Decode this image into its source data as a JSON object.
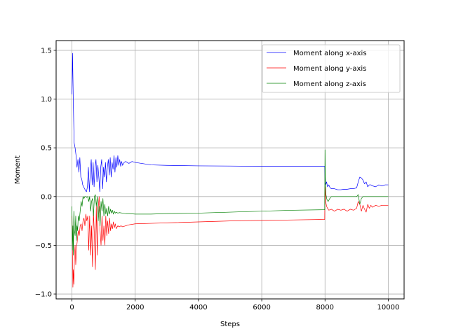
{
  "chart_data": {
    "type": "line",
    "title": "",
    "xlabel": "Steps",
    "ylabel": "Moment",
    "xlim": [
      -500,
      10500
    ],
    "ylim": [
      -1.05,
      1.6
    ],
    "xticks": [
      0,
      2000,
      4000,
      6000,
      8000,
      10000
    ],
    "xtick_labels": [
      "0",
      "2000",
      "4000",
      "6000",
      "8000",
      "10000"
    ],
    "yticks": [
      -1.0,
      -0.5,
      0.0,
      0.5,
      1.0,
      1.5
    ],
    "ytick_labels": [
      "−1.0",
      "−0.5",
      "0.0",
      "0.5",
      "1.0",
      "1.5"
    ],
    "grid": true,
    "legend_position": "top-right",
    "series": [
      {
        "name": "Moment along x-axis",
        "color": "#0000ff",
        "points": [
          [
            0,
            1.05
          ],
          [
            20,
            1.47
          ],
          [
            40,
            1.02
          ],
          [
            70,
            0.55
          ],
          [
            100,
            0.5
          ],
          [
            130,
            0.42
          ],
          [
            160,
            0.3
          ],
          [
            190,
            0.38
          ],
          [
            220,
            0.25
          ],
          [
            250,
            0.4
          ],
          [
            280,
            0.2
          ],
          [
            310,
            0.18
          ],
          [
            340,
            0.12
          ],
          [
            370,
            0.1
          ],
          [
            400,
            0.08
          ],
          [
            430,
            0.06
          ],
          [
            460,
            0.05
          ],
          [
            490,
            0.1
          ],
          [
            520,
            0.3
          ],
          [
            550,
            0.05
          ],
          [
            580,
            0.25
          ],
          [
            610,
            0.38
          ],
          [
            640,
            0.12
          ],
          [
            670,
            0.35
          ],
          [
            700,
            0.1
          ],
          [
            730,
            0.3
          ],
          [
            760,
            0.38
          ],
          [
            790,
            0.15
          ],
          [
            820,
            0.32
          ],
          [
            850,
            0.2
          ],
          [
            880,
            0.05
          ],
          [
            910,
            0.3
          ],
          [
            940,
            0.38
          ],
          [
            970,
            0.08
          ],
          [
            1000,
            0.3
          ],
          [
            1030,
            0.2
          ],
          [
            1060,
            0.35
          ],
          [
            1090,
            0.15
          ],
          [
            1120,
            0.3
          ],
          [
            1150,
            0.38
          ],
          [
            1180,
            0.22
          ],
          [
            1210,
            0.4
          ],
          [
            1240,
            0.2
          ],
          [
            1270,
            0.35
          ],
          [
            1300,
            0.28
          ],
          [
            1330,
            0.42
          ],
          [
            1360,
            0.25
          ],
          [
            1390,
            0.4
          ],
          [
            1420,
            0.3
          ],
          [
            1450,
            0.42
          ],
          [
            1480,
            0.32
          ],
          [
            1510,
            0.38
          ],
          [
            1540,
            0.31
          ],
          [
            1570,
            0.36
          ],
          [
            1600,
            0.32
          ],
          [
            1650,
            0.35
          ],
          [
            1700,
            0.36
          ],
          [
            1750,
            0.35
          ],
          [
            1800,
            0.34
          ],
          [
            1900,
            0.36
          ],
          [
            2000,
            0.35
          ],
          [
            2200,
            0.34
          ],
          [
            2500,
            0.325
          ],
          [
            3000,
            0.32
          ],
          [
            4000,
            0.315
          ],
          [
            5000,
            0.313
          ],
          [
            6000,
            0.31
          ],
          [
            7000,
            0.31
          ],
          [
            7990,
            0.31
          ],
          [
            8000,
            0.16
          ],
          [
            8020,
            0.12
          ],
          [
            8050,
            0.15
          ],
          [
            8080,
            0.1
          ],
          [
            8120,
            0.12
          ],
          [
            8160,
            0.09
          ],
          [
            8200,
            0.08
          ],
          [
            8300,
            0.08
          ],
          [
            8400,
            0.07
          ],
          [
            8500,
            0.07
          ],
          [
            8600,
            0.075
          ],
          [
            8700,
            0.075
          ],
          [
            8800,
            0.08
          ],
          [
            8900,
            0.08
          ],
          [
            9000,
            0.09
          ],
          [
            9050,
            0.15
          ],
          [
            9100,
            0.2
          ],
          [
            9150,
            0.19
          ],
          [
            9200,
            0.17
          ],
          [
            9250,
            0.13
          ],
          [
            9300,
            0.15
          ],
          [
            9350,
            0.1
          ],
          [
            9400,
            0.12
          ],
          [
            9450,
            0.12
          ],
          [
            9500,
            0.11
          ],
          [
            9600,
            0.1
          ],
          [
            9700,
            0.12
          ],
          [
            9800,
            0.11
          ],
          [
            9900,
            0.12
          ],
          [
            10000,
            0.12
          ]
        ]
      },
      {
        "name": "Moment along y-axis",
        "color": "#ff0000",
        "points": [
          [
            0,
            -0.2
          ],
          [
            15,
            -0.5
          ],
          [
            30,
            -0.93
          ],
          [
            45,
            -0.75
          ],
          [
            60,
            -0.9
          ],
          [
            80,
            -0.6
          ],
          [
            100,
            -0.5
          ],
          [
            120,
            -0.7
          ],
          [
            140,
            -0.55
          ],
          [
            170,
            -0.45
          ],
          [
            200,
            -0.35
          ],
          [
            230,
            -0.4
          ],
          [
            260,
            -0.3
          ],
          [
            290,
            -0.28
          ],
          [
            320,
            -0.35
          ],
          [
            350,
            -0.25
          ],
          [
            380,
            -0.22
          ],
          [
            410,
            -0.3
          ],
          [
            440,
            -0.18
          ],
          [
            470,
            -0.25
          ],
          [
            500,
            -0.2
          ],
          [
            530,
            -0.55
          ],
          [
            560,
            -0.2
          ],
          [
            590,
            -0.6
          ],
          [
            620,
            -0.3
          ],
          [
            650,
            -0.72
          ],
          [
            680,
            -0.15
          ],
          [
            710,
            -0.4
          ],
          [
            740,
            -0.75
          ],
          [
            770,
            -0.1
          ],
          [
            800,
            -0.6
          ],
          [
            830,
            -0.12
          ],
          [
            860,
            0.0
          ],
          [
            890,
            -0.35
          ],
          [
            920,
            -0.5
          ],
          [
            950,
            -0.2
          ],
          [
            980,
            -0.45
          ],
          [
            1010,
            -0.3
          ],
          [
            1040,
            -0.5
          ],
          [
            1070,
            -0.2
          ],
          [
            1100,
            -0.4
          ],
          [
            1130,
            -0.25
          ],
          [
            1160,
            -0.38
          ],
          [
            1190,
            -0.22
          ],
          [
            1220,
            -0.35
          ],
          [
            1250,
            -0.28
          ],
          [
            1280,
            -0.33
          ],
          [
            1310,
            -0.26
          ],
          [
            1340,
            -0.32
          ],
          [
            1370,
            -0.28
          ],
          [
            1400,
            -0.33
          ],
          [
            1450,
            -0.3
          ],
          [
            1500,
            -0.31
          ],
          [
            1550,
            -0.3
          ],
          [
            1600,
            -0.31
          ],
          [
            1700,
            -0.3
          ],
          [
            1800,
            -0.29
          ],
          [
            2000,
            -0.28
          ],
          [
            2500,
            -0.275
          ],
          [
            3000,
            -0.27
          ],
          [
            4000,
            -0.26
          ],
          [
            5000,
            -0.25
          ],
          [
            6000,
            -0.245
          ],
          [
            7000,
            -0.24
          ],
          [
            7990,
            -0.235
          ],
          [
            8000,
            0.1
          ],
          [
            8020,
            -0.05
          ],
          [
            8050,
            -0.1
          ],
          [
            8080,
            -0.12
          ],
          [
            8120,
            -0.14
          ],
          [
            8200,
            -0.13
          ],
          [
            8300,
            -0.15
          ],
          [
            8400,
            -0.13
          ],
          [
            8500,
            -0.14
          ],
          [
            8600,
            -0.13
          ],
          [
            8700,
            -0.15
          ],
          [
            8800,
            -0.13
          ],
          [
            8900,
            -0.14
          ],
          [
            9000,
            -0.12
          ],
          [
            9050,
            -0.05
          ],
          [
            9100,
            -0.08
          ],
          [
            9150,
            -0.15
          ],
          [
            9200,
            -0.09
          ],
          [
            9250,
            -0.13
          ],
          [
            9300,
            -0.16
          ],
          [
            9350,
            -0.08
          ],
          [
            9400,
            -0.12
          ],
          [
            9450,
            -0.09
          ],
          [
            9500,
            -0.11
          ],
          [
            9600,
            -0.09
          ],
          [
            9700,
            -0.1
          ],
          [
            9800,
            -0.09
          ],
          [
            9900,
            -0.09
          ],
          [
            10000,
            -0.09
          ]
        ]
      },
      {
        "name": "Moment along z-axis",
        "color": "#008000",
        "points": [
          [
            0,
            -0.1
          ],
          [
            15,
            -0.55
          ],
          [
            30,
            -0.3
          ],
          [
            45,
            -0.6
          ],
          [
            60,
            -0.15
          ],
          [
            80,
            -0.35
          ],
          [
            100,
            -0.4
          ],
          [
            120,
            -0.2
          ],
          [
            140,
            -0.45
          ],
          [
            160,
            -0.3
          ],
          [
            180,
            -0.35
          ],
          [
            200,
            -0.2
          ],
          [
            230,
            -0.25
          ],
          [
            260,
            -0.15
          ],
          [
            290,
            -0.05
          ],
          [
            320,
            -0.1
          ],
          [
            350,
            0.0
          ],
          [
            380,
            -0.02
          ],
          [
            410,
            0.0
          ],
          [
            440,
            0.0
          ],
          [
            470,
            -0.01
          ],
          [
            500,
            0.0
          ],
          [
            530,
            -0.05
          ],
          [
            560,
            0.0
          ],
          [
            590,
            -0.15
          ],
          [
            620,
            -0.05
          ],
          [
            650,
            -0.02
          ],
          [
            680,
            -0.2
          ],
          [
            710,
            0.0
          ],
          [
            740,
            0.02
          ],
          [
            770,
            -0.1
          ],
          [
            800,
            0.0
          ],
          [
            830,
            -0.25
          ],
          [
            860,
            -0.1
          ],
          [
            890,
            -0.3
          ],
          [
            920,
            -0.05
          ],
          [
            950,
            -0.15
          ],
          [
            980,
            -0.02
          ],
          [
            1010,
            -0.2
          ],
          [
            1040,
            -0.08
          ],
          [
            1070,
            -0.18
          ],
          [
            1100,
            -0.12
          ],
          [
            1130,
            -0.2
          ],
          [
            1160,
            -0.1
          ],
          [
            1190,
            -0.18
          ],
          [
            1220,
            -0.13
          ],
          [
            1250,
            -0.17
          ],
          [
            1280,
            -0.14
          ],
          [
            1310,
            -0.18
          ],
          [
            1340,
            -0.15
          ],
          [
            1370,
            -0.17
          ],
          [
            1400,
            -0.16
          ],
          [
            1450,
            -0.17
          ],
          [
            1500,
            -0.165
          ],
          [
            1600,
            -0.17
          ],
          [
            1700,
            -0.175
          ],
          [
            1800,
            -0.175
          ],
          [
            2000,
            -0.18
          ],
          [
            2500,
            -0.18
          ],
          [
            3000,
            -0.175
          ],
          [
            4000,
            -0.17
          ],
          [
            5000,
            -0.16
          ],
          [
            6000,
            -0.15
          ],
          [
            7000,
            -0.14
          ],
          [
            7990,
            -0.135
          ],
          [
            8000,
            0.48
          ],
          [
            8010,
            0.2
          ],
          [
            8030,
            0.02
          ],
          [
            8060,
            -0.03
          ],
          [
            8100,
            -0.05
          ],
          [
            8150,
            -0.02
          ],
          [
            8200,
            0.0
          ],
          [
            8300,
            0.0
          ],
          [
            8400,
            0.0
          ],
          [
            8500,
            0.0
          ],
          [
            8700,
            0.0
          ],
          [
            8900,
            0.0
          ],
          [
            9000,
            0.0
          ],
          [
            9050,
            0.02
          ],
          [
            9100,
            -0.08
          ],
          [
            9150,
            -0.02
          ],
          [
            9200,
            0.0
          ],
          [
            9300,
            0.0
          ],
          [
            9500,
            0.0
          ],
          [
            9700,
            0.0
          ],
          [
            10000,
            0.0
          ]
        ]
      }
    ]
  }
}
